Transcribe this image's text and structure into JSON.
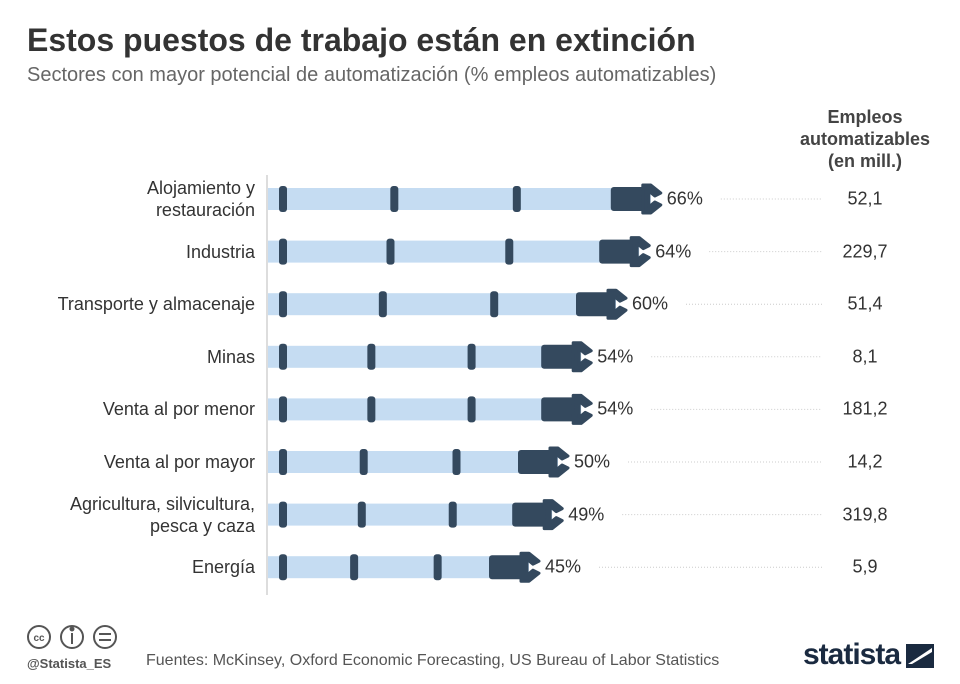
{
  "chart_data": {
    "type": "bar",
    "title": "Estos puestos de trabajo están en extinción",
    "subtitle": "Sectores con mayor potencial de automatización (% empleos automatizables)",
    "categories": [
      "Alojamiento y\nrestauración",
      "Industria",
      "Transporte y almacenaje",
      "Minas",
      "Venta al por menor",
      "Venta al por mayor",
      "Agricultura, silvicultura,\npesca y caza",
      "Energía"
    ],
    "values": [
      66,
      64,
      60,
      54,
      54,
      50,
      49,
      45
    ],
    "value_labels": [
      "66%",
      "64%",
      "60%",
      "54%",
      "54%",
      "50%",
      "49%",
      "45%"
    ],
    "color": "#c5dcf2",
    "xlim": [
      0,
      100
    ],
    "jobs_column": {
      "title": "Empleos\nautomatizables\n(en mill.)",
      "values": [
        52.1,
        229.7,
        51.4,
        8.1,
        181.2,
        14.2,
        319.8,
        5.9
      ],
      "value_labels": [
        "52,1",
        "229,7",
        "51,4",
        "8,1",
        "181,2",
        "14,2",
        "319,8",
        "5,9"
      ]
    }
  },
  "footer": {
    "handle": "@Statista_ES",
    "source": "Fuentes: McKinsey, Oxford Economic Forecasting, US Bureau of Labor Statistics",
    "brand": "statista"
  }
}
